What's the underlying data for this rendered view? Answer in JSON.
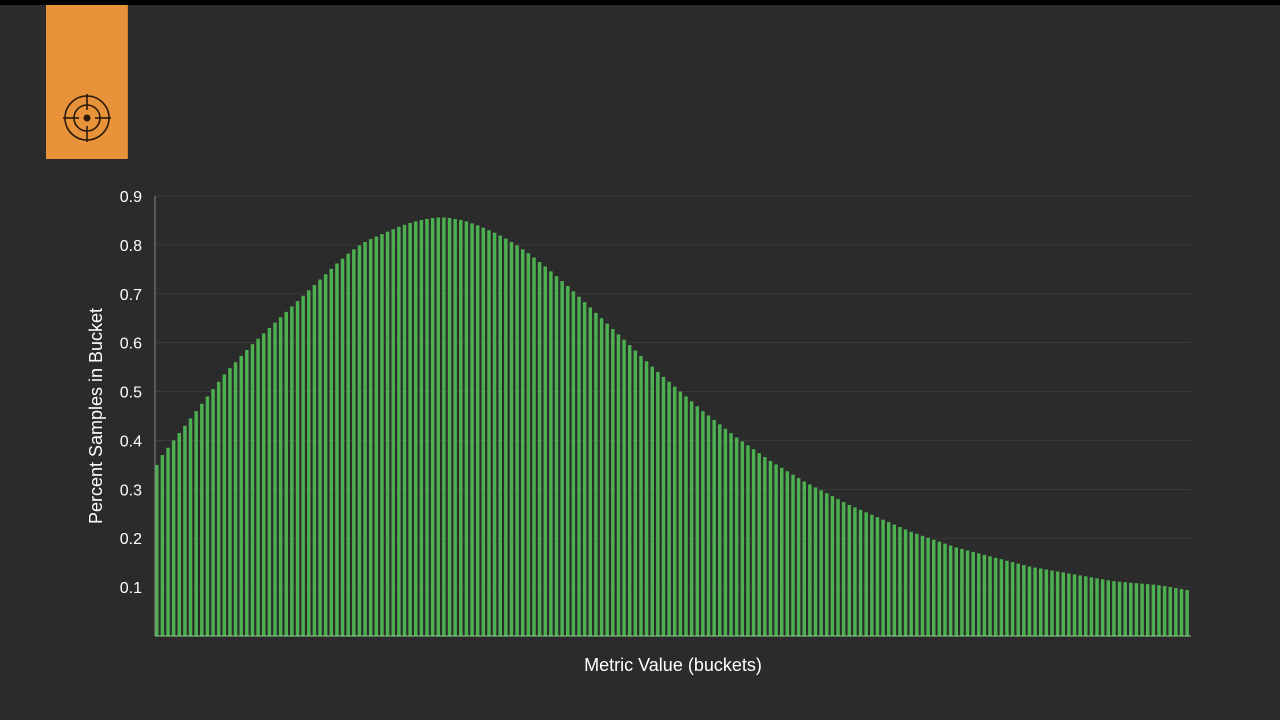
{
  "icons": {
    "badge_icon": "crosshair-target-icon"
  },
  "colors": {
    "background": "#2b2b2b",
    "badge": "#e8923a",
    "bar": "#4caf50",
    "gridline": "#3a3a3a",
    "text": "#ffffff"
  },
  "chart_data": {
    "type": "bar",
    "title": "",
    "xlabel": "Metric Value (buckets)",
    "ylabel": "Percent Samples in Bucket",
    "ylim": [
      0,
      0.9
    ],
    "yticks": [
      0.1,
      0.2,
      0.3,
      0.4,
      0.5,
      0.6,
      0.7,
      0.8,
      0.9
    ],
    "grid": true,
    "legend": "none",
    "values": [
      0.35,
      0.37,
      0.385,
      0.4,
      0.415,
      0.43,
      0.445,
      0.46,
      0.475,
      0.49,
      0.505,
      0.52,
      0.535,
      0.548,
      0.56,
      0.573,
      0.585,
      0.597,
      0.608,
      0.619,
      0.63,
      0.641,
      0.652,
      0.663,
      0.674,
      0.685,
      0.696,
      0.707,
      0.718,
      0.729,
      0.74,
      0.751,
      0.762,
      0.772,
      0.782,
      0.791,
      0.799,
      0.806,
      0.812,
      0.817,
      0.822,
      0.827,
      0.832,
      0.837,
      0.841,
      0.845,
      0.848,
      0.851,
      0.853,
      0.855,
      0.856,
      0.856,
      0.855,
      0.853,
      0.851,
      0.848,
      0.844,
      0.84,
      0.835,
      0.83,
      0.825,
      0.819,
      0.813,
      0.806,
      0.799,
      0.791,
      0.783,
      0.774,
      0.765,
      0.756,
      0.746,
      0.736,
      0.726,
      0.716,
      0.705,
      0.694,
      0.683,
      0.672,
      0.661,
      0.65,
      0.639,
      0.628,
      0.617,
      0.606,
      0.595,
      0.584,
      0.573,
      0.562,
      0.551,
      0.54,
      0.53,
      0.52,
      0.51,
      0.5,
      0.49,
      0.48,
      0.47,
      0.46,
      0.451,
      0.442,
      0.433,
      0.424,
      0.415,
      0.406,
      0.398,
      0.39,
      0.382,
      0.374,
      0.366,
      0.358,
      0.351,
      0.344,
      0.337,
      0.33,
      0.323,
      0.316,
      0.31,
      0.304,
      0.298,
      0.292,
      0.286,
      0.28,
      0.274,
      0.268,
      0.263,
      0.258,
      0.253,
      0.248,
      0.243,
      0.238,
      0.233,
      0.228,
      0.223,
      0.218,
      0.213,
      0.209,
      0.205,
      0.201,
      0.197,
      0.193,
      0.189,
      0.185,
      0.181,
      0.178,
      0.175,
      0.172,
      0.169,
      0.166,
      0.163,
      0.16,
      0.157,
      0.154,
      0.151,
      0.148,
      0.145,
      0.142,
      0.14,
      0.138,
      0.136,
      0.134,
      0.132,
      0.13,
      0.128,
      0.126,
      0.124,
      0.122,
      0.12,
      0.118,
      0.116,
      0.114,
      0.112,
      0.111,
      0.11,
      0.109,
      0.108,
      0.107,
      0.106,
      0.105,
      0.104,
      0.102,
      0.1,
      0.098,
      0.096,
      0.094
    ]
  }
}
